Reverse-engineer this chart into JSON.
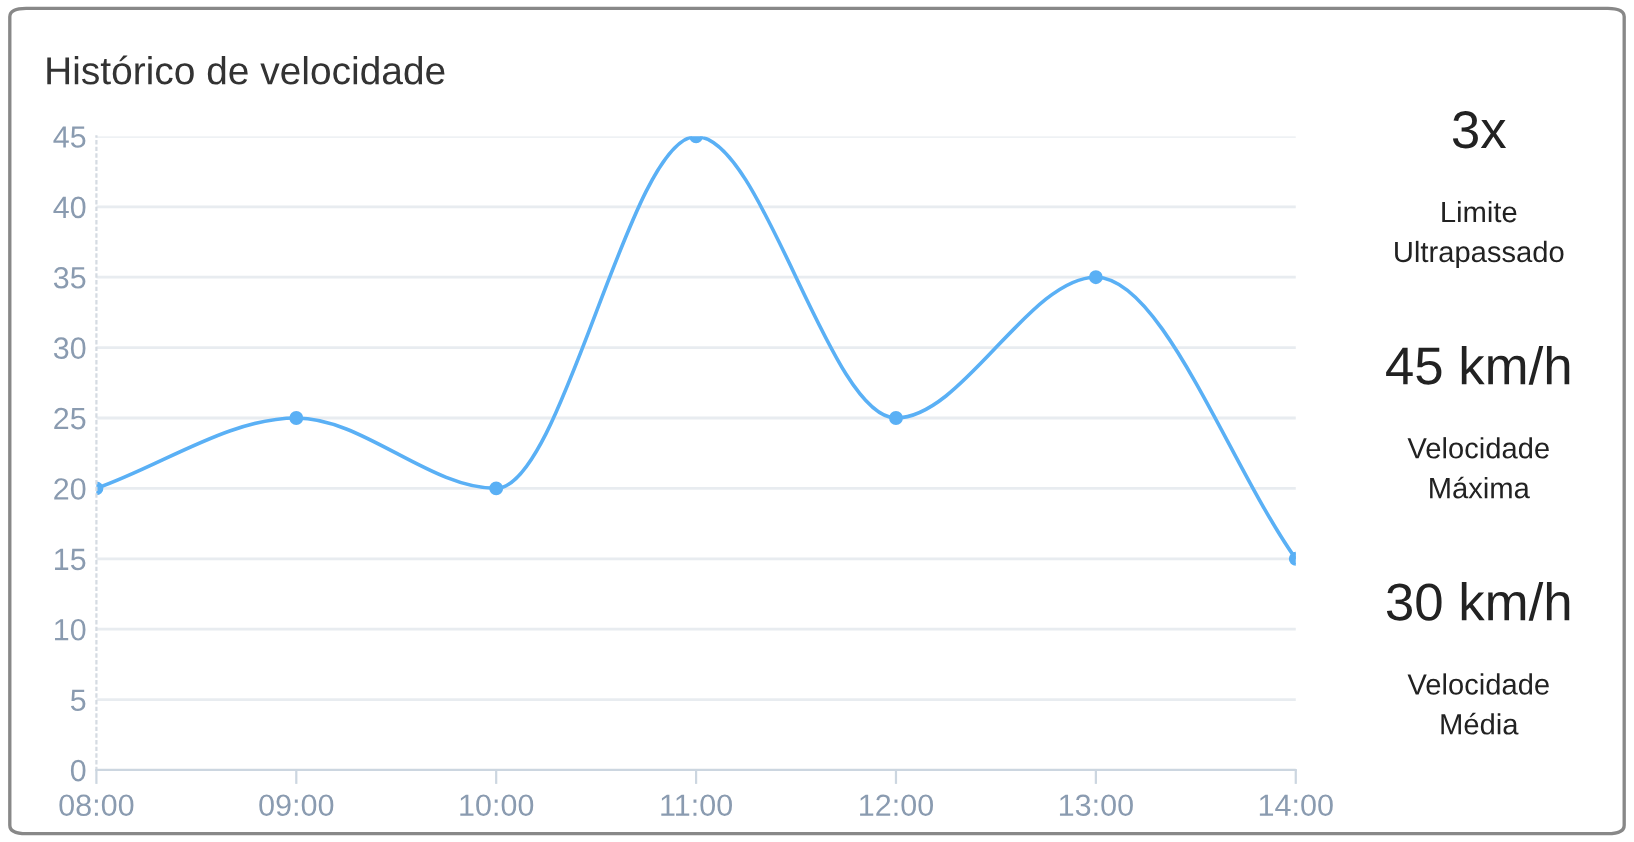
{
  "chart_data": [
    {
      "type": "line",
      "title": "Histórico de velocidade",
      "categories": [
        "08:00",
        "09:00",
        "10:00",
        "11:00",
        "12:00",
        "13:00",
        "14:00"
      ],
      "series": [
        {
          "color": "#5ab0f5",
          "values": [
            20,
            25,
            20,
            45,
            25,
            35,
            15
          ]
        }
      ],
      "ylim": [
        0,
        45
      ],
      "yticks": [
        0,
        5,
        10,
        15,
        20,
        25,
        30,
        35,
        40,
        45
      ],
      "grid": "y",
      "marker": "circle",
      "line_style": "solid",
      "legend": false
    },
    {
      "type": "other",
      "annotations": [
        "3x",
        "Limite\nUltrapassado",
        "45 km/h",
        "Velocidade\nMáxima",
        "30 km/h",
        "Velocidade\nMédia"
      ]
    }
  ]
}
